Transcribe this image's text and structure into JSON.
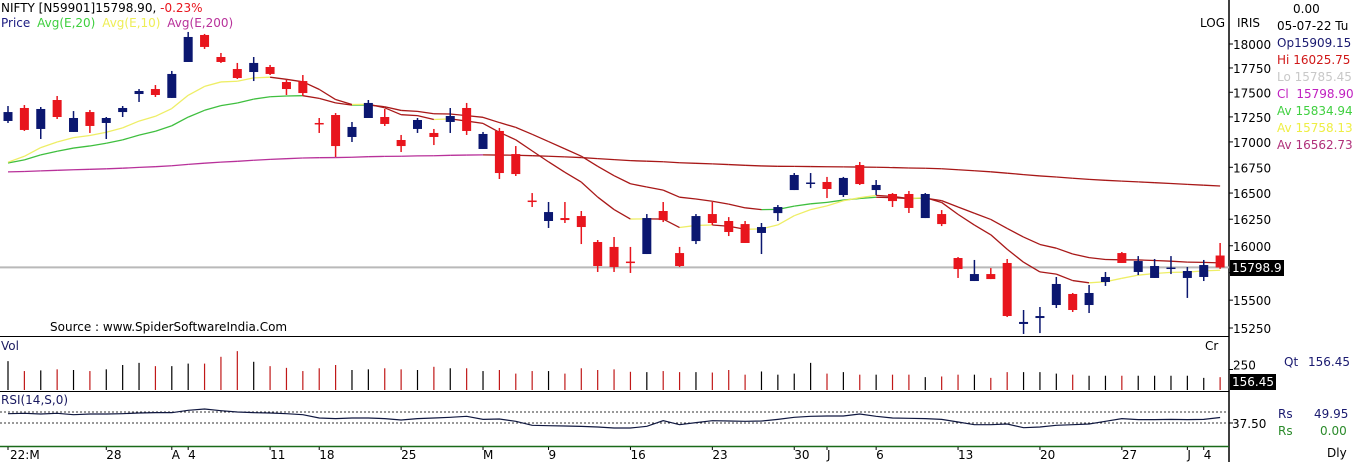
{
  "header": {
    "symbol": "NIFTY [N59901]15798.90,",
    "change": "-0.23%",
    "price_label": "Price",
    "avg20_label": "Avg(E,20)",
    "avg10_label": "Avg(E,10)",
    "avg200_label": "Avg(E,200)",
    "source": "Source : www.SpiderSoftwareIndia.Com",
    "log_label": "LOG",
    "iris_label": "IRIS"
  },
  "info_panel": {
    "top_value": "0.00",
    "date": "05-07-22 Tu",
    "open": {
      "label": "Op",
      "value": "15909.15"
    },
    "high": {
      "label": "Hi",
      "value": "16025.75"
    },
    "low": {
      "label": "Lo",
      "value": "15785.45"
    },
    "close": {
      "label": "Cl",
      "value": "15798.90"
    },
    "avg20": {
      "label": "Av",
      "value": "15834.94"
    },
    "avg10": {
      "label": "Av",
      "value": "15758.13"
    },
    "avg200": {
      "label": "Av",
      "value": "16562.73"
    },
    "qty": {
      "label": "Qt",
      "value": "156.45"
    },
    "rsi": {
      "label": "Rs",
      "value": "49.95"
    },
    "rsi2": {
      "label": "Rs",
      "value": "0.00"
    },
    "period": "Dly"
  },
  "colors": {
    "up": "#0b1770",
    "down": "#e8151d",
    "avg20": "#3fbf3f",
    "avg10": "#eeee66",
    "avg200": "#b8319a",
    "bearish_avg": "#a81818",
    "last_line": "#b9b9b9",
    "rsi": "#101840"
  },
  "chart_data": [
    {
      "type": "candlestick",
      "panel": "price",
      "scale": "log",
      "y_ticks": [
        18000,
        17750,
        17500,
        17250,
        17000,
        16750,
        16500,
        16250,
        16000,
        15750,
        15500,
        15250
      ],
      "y_tick_labels": [
        "18000",
        "17750",
        "17500",
        "17250",
        "17000",
        "16750",
        "16500",
        "16250",
        "16000",
        "",
        "15500",
        "15250"
      ],
      "last_price_label": "15798.9",
      "last_price": 15798.9,
      "ohlc": [
        [
          17209,
          17360,
          17189,
          17299
        ],
        [
          17340,
          17370,
          17109,
          17119
        ],
        [
          17129,
          17350,
          17029,
          17330
        ],
        [
          17421,
          17462,
          17229,
          17249
        ],
        [
          17099,
          17309,
          17099,
          17239
        ],
        [
          17299,
          17320,
          17089,
          17159
        ],
        [
          17189,
          17249,
          17029,
          17239
        ],
        [
          17299,
          17360,
          17249,
          17340
        ],
        [
          17482,
          17533,
          17401,
          17513
        ],
        [
          17533,
          17574,
          17452,
          17472
        ],
        [
          17442,
          17719,
          17442,
          17688
        ],
        [
          17812,
          18127,
          17812,
          18074
        ],
        [
          18095,
          18106,
          17948,
          17969
        ],
        [
          17864,
          17906,
          17802,
          17812
        ],
        [
          17739,
          17802,
          17636,
          17646
        ],
        [
          17708,
          17864,
          17615,
          17802
        ],
        [
          17760,
          17781,
          17677,
          17688
        ],
        [
          17605,
          17626,
          17472,
          17533
        ],
        [
          17615,
          17677,
          17462,
          17492
        ],
        [
          17189,
          17239,
          17089,
          17180
        ],
        [
          17269,
          17289,
          16851,
          16959
        ],
        [
          17049,
          17199,
          16999,
          17149
        ],
        [
          17239,
          17421,
          17239,
          17391
        ],
        [
          17249,
          17330,
          17159,
          17179
        ],
        [
          17019,
          17069,
          16900,
          16959
        ],
        [
          17129,
          17239,
          17089,
          17219
        ],
        [
          17089,
          17129,
          16969,
          17049
        ],
        [
          17199,
          17340,
          17089,
          17259
        ],
        [
          17340,
          17391,
          17069,
          17109
        ],
        [
          16930,
          17099,
          16930,
          17079
        ],
        [
          17109,
          17139,
          16636,
          16694
        ],
        [
          16880,
          16959,
          16665,
          16684
        ],
        [
          16428,
          16500,
          16366,
          16418
        ],
        [
          16233,
          16414,
          16167,
          16318
        ],
        [
          16261,
          16414,
          16214,
          16242
        ],
        [
          16280,
          16328,
          16016,
          16176
        ],
        [
          16035,
          16054,
          15757,
          15812
        ],
        [
          15989,
          16082,
          15757,
          15803
        ],
        [
          15853,
          15989,
          15748,
          15845
        ],
        [
          15923,
          16299,
          15923,
          16261
        ],
        [
          16328,
          16414,
          16223,
          16242
        ],
        [
          15932,
          15989,
          15803,
          15812
        ],
        [
          16044,
          16299,
          16016,
          16280
        ],
        [
          16299,
          16414,
          16195,
          16214
        ],
        [
          16233,
          16270,
          16091,
          16129
        ],
        [
          16204,
          16233,
          16026,
          16026
        ],
        [
          16120,
          16214,
          15923,
          16176
        ],
        [
          16308,
          16385,
          16233,
          16366
        ],
        [
          16529,
          16694,
          16529,
          16675
        ],
        [
          16592,
          16694,
          16548,
          16602
        ],
        [
          16607,
          16656,
          16452,
          16539
        ],
        [
          16481,
          16656,
          16462,
          16646
        ],
        [
          16772,
          16802,
          16578,
          16587
        ],
        [
          16529,
          16626,
          16481,
          16578
        ],
        [
          16491,
          16500,
          16366,
          16423
        ],
        [
          16491,
          16520,
          16309,
          16357
        ],
        [
          16261,
          16500,
          16261,
          16491
        ],
        [
          16299,
          16337,
          16185,
          16204
        ],
        [
          15886,
          15895,
          15702,
          15784
        ],
        [
          15674,
          15868,
          15674,
          15738
        ],
        [
          15738,
          15793,
          15692,
          15692
        ],
        [
          15840,
          15877,
          15348,
          15357
        ],
        [
          15286,
          15411,
          15197,
          15304
        ],
        [
          15339,
          15438,
          15205,
          15357
        ],
        [
          15456,
          15711,
          15429,
          15647
        ],
        [
          15556,
          15565,
          15393,
          15411
        ],
        [
          15456,
          15638,
          15384,
          15565
        ],
        [
          15665,
          15757,
          15629,
          15711
        ],
        [
          15932,
          15942,
          15840,
          15840
        ],
        [
          15757,
          15904,
          15729,
          15858
        ],
        [
          15702,
          15877,
          15702,
          15812
        ],
        [
          15788,
          15904,
          15738,
          15798
        ],
        [
          15702,
          15803,
          15520,
          15766
        ],
        [
          15711,
          15868,
          15674,
          15821
        ],
        [
          15909.15,
          16025.75,
          15785.45,
          15798.9
        ]
      ],
      "series": [
        {
          "name": "Avg(E,20)",
          "kind": "ema",
          "period": 20
        },
        {
          "name": "Avg(E,10)",
          "kind": "ema",
          "period": 10
        },
        {
          "name": "Avg(E,200)",
          "kind": "ema",
          "period": 200
        }
      ],
      "x_labels": [
        {
          "bar": 1,
          "text": "22:M"
        },
        {
          "bar": 7,
          "text": "28"
        },
        {
          "bar": 11,
          "text": "A"
        },
        {
          "bar": 12,
          "text": "4"
        },
        {
          "bar": 17,
          "text": "11"
        },
        {
          "bar": 20,
          "text": "18"
        },
        {
          "bar": 25,
          "text": "25"
        },
        {
          "bar": 30,
          "text": "M"
        },
        {
          "bar": 34,
          "text": "9"
        },
        {
          "bar": 39,
          "text": "16"
        },
        {
          "bar": 44,
          "text": "23"
        },
        {
          "bar": 49,
          "text": "30"
        },
        {
          "bar": 51,
          "text": "J"
        },
        {
          "bar": 54,
          "text": "6"
        },
        {
          "bar": 59,
          "text": "13"
        },
        {
          "bar": 64,
          "text": "20"
        },
        {
          "bar": 69,
          "text": "27"
        },
        {
          "bar": 73,
          "text": "J"
        },
        {
          "bar": 74,
          "text": "4"
        }
      ]
    },
    {
      "type": "bar",
      "panel": "volume",
      "title": "Vol",
      "unit": "Cr",
      "y_tick_label": "250",
      "last_value_label": "156.45",
      "values": [
        352,
        231,
        239,
        252,
        244,
        231,
        252,
        305,
        331,
        291,
        291,
        322,
        322,
        405,
        474,
        344,
        291,
        270,
        231,
        265,
        305,
        244,
        252,
        265,
        252,
        244,
        283,
        265,
        265,
        231,
        244,
        200,
        231,
        231,
        200,
        265,
        244,
        252,
        222,
        218,
        231,
        218,
        218,
        213,
        244,
        187,
        226,
        187,
        200,
        331,
        200,
        218,
        187,
        187,
        187,
        187,
        157,
        165,
        187,
        187,
        148,
        218,
        218,
        218,
        200,
        187,
        174,
        174,
        174,
        174,
        174,
        174,
        174,
        148,
        156.45
      ]
    },
    {
      "type": "line",
      "panel": "rsi",
      "title": "RSI(14,S,0)",
      "y_tick_label": "37.50",
      "reference_levels": [
        37.5,
        62.5
      ],
      "values": [
        58.7,
        59.5,
        58.0,
        59.5,
        56.4,
        58.0,
        58.0,
        58.7,
        60.2,
        61.0,
        61.0,
        66.3,
        69.3,
        65.5,
        62.5,
        61.0,
        60.2,
        58.7,
        56.4,
        48.9,
        47.4,
        48.9,
        48.9,
        47.4,
        44.3,
        47.4,
        48.9,
        50.4,
        52.7,
        45.8,
        46.6,
        41.3,
        32.2,
        31.4,
        30.7,
        29.9,
        28.4,
        26.1,
        26.1,
        29.9,
        42.8,
        33.7,
        38.3,
        42.8,
        42.0,
        41.3,
        42.0,
        45.8,
        50.4,
        52.7,
        53.4,
        53.4,
        58.0,
        52.7,
        48.9,
        48.1,
        47.4,
        45.8,
        39.8,
        33.7,
        33.7,
        35.2,
        26.9,
        28.4,
        32.2,
        33.7,
        35.2,
        41.3,
        47.4,
        45.1,
        45.1,
        45.8,
        45.1,
        45.8,
        49.95
      ]
    }
  ]
}
